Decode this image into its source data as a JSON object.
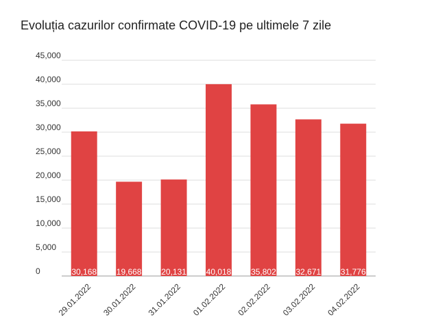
{
  "chart_data": {
    "type": "bar",
    "title": "Evoluția cazurilor confirmate COVID-19 pe ultimele 7 zile",
    "categories": [
      "29.01.2022",
      "30.01.2022",
      "31.01.2022",
      "01.02.2022",
      "02.02.2022",
      "03.02.2022",
      "04.02.2022"
    ],
    "values": [
      30168,
      19668,
      20131,
      40018,
      35802,
      32671,
      31776
    ],
    "value_labels": [
      "30,168",
      "19,668",
      "20,131",
      "40,018",
      "35,802",
      "32,671",
      "31,776"
    ],
    "color": "#e04343",
    "ylim": [
      0,
      45000
    ],
    "yticks": [
      0,
      {
        "value": 5000,
        "label": "5,000"
      },
      {
        "value": 10000,
        "label": "10,000"
      },
      {
        "value": 15000,
        "label": "15,000"
      },
      {
        "value": 20000,
        "label": "20,000"
      },
      {
        "value": 25000,
        "label": "25,000"
      },
      {
        "value": 30000,
        "label": "30,000"
      },
      {
        "value": 35000,
        "label": "35,000"
      },
      {
        "value": 40000,
        "label": "40,000"
      },
      {
        "value": 45000,
        "label": "45,000"
      }
    ],
    "grid": true
  }
}
